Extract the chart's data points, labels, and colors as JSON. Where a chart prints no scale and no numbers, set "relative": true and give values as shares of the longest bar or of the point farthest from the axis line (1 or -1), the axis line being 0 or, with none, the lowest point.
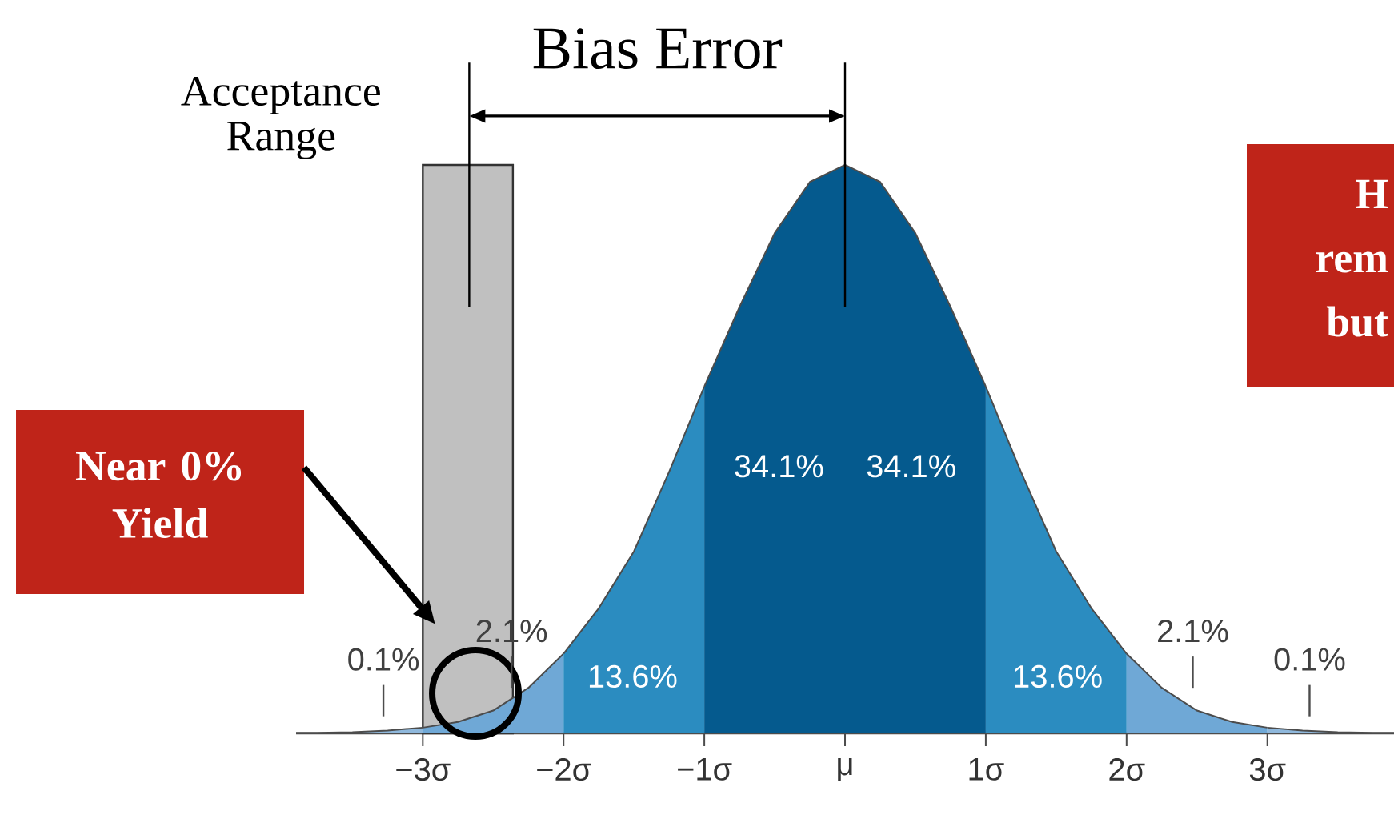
{
  "chart_data": {
    "type": "area",
    "relative": true,
    "series": [
      {
        "color": "#8fb8dc",
        "x": [
          -3.9,
          -3.75,
          -3.5,
          -3.25,
          -3
        ],
        "values": [
          0.001,
          0.001,
          0.002,
          0.005,
          0.01
        ]
      },
      {
        "color": "#6fa8d6",
        "x": [
          -3,
          -2.75,
          -2.5,
          -2.25,
          -2
        ],
        "values": [
          0.01,
          0.02,
          0.04,
          0.08,
          0.14
        ]
      },
      {
        "color": "#2b8cc0",
        "x": [
          -2,
          -1.75,
          -1.5,
          -1.25,
          -1
        ],
        "values": [
          0.14,
          0.22,
          0.32,
          0.46,
          0.61
        ]
      },
      {
        "color": "#055a8e",
        "x": [
          -1,
          -0.75,
          -0.5,
          -0.25,
          0,
          0.25,
          0.5,
          0.75,
          1
        ],
        "values": [
          0.61,
          0.75,
          0.88,
          0.97,
          1,
          0.97,
          0.88,
          0.75,
          0.61
        ]
      },
      {
        "color": "#2b8cc0",
        "x": [
          1,
          1.25,
          1.5,
          1.75,
          2
        ],
        "values": [
          0.61,
          0.46,
          0.32,
          0.22,
          0.14
        ]
      },
      {
        "color": "#6fa8d6",
        "x": [
          2,
          2.25,
          2.5,
          2.75,
          3
        ],
        "values": [
          0.14,
          0.08,
          0.04,
          0.02,
          0.01
        ]
      },
      {
        "color": "#8fb8dc",
        "x": [
          3,
          3.25,
          3.5,
          3.75,
          3.9
        ],
        "values": [
          0.01,
          0.005,
          0.002,
          0.001,
          0.001
        ]
      }
    ],
    "xlim": [
      -3.9,
      3.9
    ],
    "xticks": [
      {
        "value": -3,
        "label": "−3σ"
      },
      {
        "value": -2,
        "label": "−2σ"
      },
      {
        "value": -1,
        "label": "−1σ"
      },
      {
        "value": 0,
        "label": "μ"
      },
      {
        "value": 1,
        "label": "1σ"
      },
      {
        "value": 2,
        "label": "2σ"
      },
      {
        "value": 3,
        "label": "3σ"
      }
    ],
    "tick_labels": "x",
    "grid": false,
    "bands": [
      {
        "axis": "x",
        "from": -3,
        "to": -2.36,
        "color": "#c0c0c0",
        "label": "Acceptance Range"
      }
    ],
    "ref_lines": [
      {
        "axis": "x",
        "value": 0
      },
      {
        "axis": "x",
        "value": -2.67
      }
    ],
    "annotations": [
      "Bias Error",
      "Near 0% Yield",
      "H",
      "rem",
      "but",
      "34.1%",
      "34.1%",
      "13.6%",
      "13.6%",
      "2.1%",
      "2.1%",
      "0.1%",
      "0.1%"
    ]
  }
}
